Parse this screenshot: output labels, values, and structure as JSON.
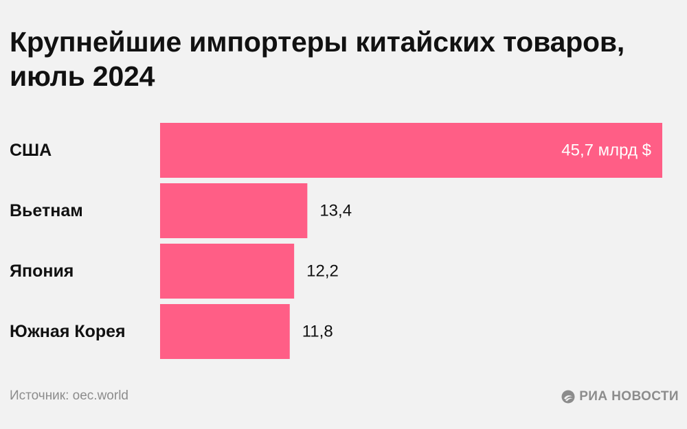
{
  "title": "Крупнейшие импортеры китайских товаров, июль 2024",
  "footer": {
    "source": "Источник: oec.world",
    "logo_text": "РИА НОВОСТИ",
    "logo_icon": "ria-novosti-logo-icon"
  },
  "colors": {
    "bar": "#ff5e86",
    "background": "#f2f2f2",
    "text": "#111111",
    "muted": "#8c8c8c",
    "inside_label": "#ffffff"
  },
  "chart_data": {
    "type": "bar",
    "orientation": "horizontal",
    "categories": [
      "США",
      "Вьетнам",
      "Япония",
      "Южная Корея"
    ],
    "values": [
      45.7,
      13.4,
      12.2,
      11.8
    ],
    "value_labels": [
      "45,7 млрд $",
      "13,4",
      "12,2",
      "11,8"
    ],
    "title": "Крупнейшие импортеры китайских товаров, июль 2024",
    "xlabel": "",
    "ylabel": "",
    "xlim": [
      0,
      45.7
    ],
    "grid": false,
    "legend": "none"
  }
}
